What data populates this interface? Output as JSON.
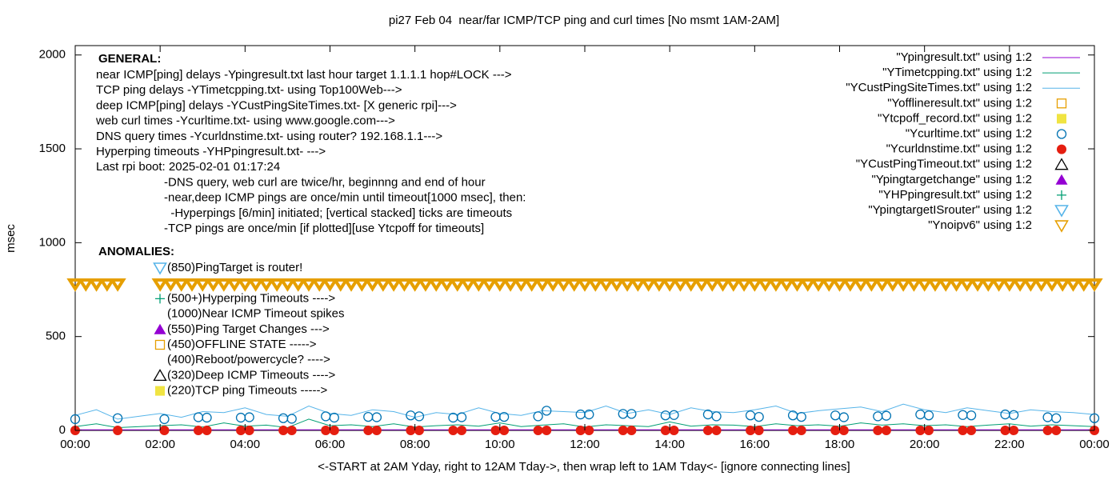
{
  "chart_data": {
    "type": "line",
    "title": "pi27 Feb 04  near/far ICMP/TCP ping and curl times [No msmt 1AM-2AM]",
    "x_label": "<-START at 2AM Yday, right to 12AM Tday->, then wrap left to 1AM Tday<- [ignore connecting lines]",
    "y_label": "msec",
    "xlim": [
      0,
      24
    ],
    "ylim": [
      0,
      2050
    ],
    "yticks": [
      0,
      500,
      1000,
      1500,
      2000
    ],
    "xticks": [
      {
        "value": 0,
        "label": "00:00"
      },
      {
        "value": 2,
        "label": "02:00"
      },
      {
        "value": 4,
        "label": "04:00"
      },
      {
        "value": 6,
        "label": "06:00"
      },
      {
        "value": 8,
        "label": "08:00"
      },
      {
        "value": 10,
        "label": "10:00"
      },
      {
        "value": 12,
        "label": "12:00"
      },
      {
        "value": 14,
        "label": "14:00"
      },
      {
        "value": 16,
        "label": "16:00"
      },
      {
        "value": 18,
        "label": "18:00"
      },
      {
        "value": 20,
        "label": "20:00"
      },
      {
        "value": 22,
        "label": "22:00"
      },
      {
        "value": 24,
        "label": "00:00"
      }
    ],
    "grid": false,
    "legend_position": "upper-right",
    "general_title": "GENERAL:",
    "general_lines": [
      "near ICMP[ping] delays -Ypingresult.txt last hour target 1.1.1.1 hop#LOCK --->",
      "TCP ping delays -YTimetcpping.txt- using Top100Web--->",
      "deep ICMP[ping] delays -YCustPingSiteTimes.txt- [X generic rpi]--->",
      "web curl times -Ycurltime.txt- using www.google.com--->",
      "DNS query times -Ycurldnstime.txt- using router? 192.168.1.1--->",
      "Hyperping timeouts -YHPpingresult.txt- --->",
      "Last rpi boot: 2025-02-01 01:17:24",
      "-DNS query, web curl are twice/hr, beginnng and end of hour",
      "-near,deep ICMP pings are once/min until timeout[1000 msec], then:",
      "  -Hyperpings [6/min] initiated; [vertical stacked] ticks are timeouts",
      "-TCP pings are once/min [if plotted][use Ytcpoff for timeouts]"
    ],
    "anomalies_title": "ANOMALIES:",
    "anomalies_lines": [
      "(850)PingTarget is router!",
      "(500+)Hyperping Timeouts ---->",
      "(1000)Near ICMP Timeout spikes",
      "(550)Ping Target Changes --->",
      "(450)OFFLINE STATE ----->",
      "(400)Reboot/powercycle? ---->",
      "(320)Deep ICMP Timeouts ---->",
      "(220)TCP ping Timeouts ----->"
    ],
    "series": [
      {
        "name": "\"Ypingresult.txt\" using 1:2",
        "color": "#9400d3",
        "marker": "line",
        "x": [
          0,
          12,
          24
        ],
        "values": [
          3,
          3,
          3
        ]
      },
      {
        "name": "\"YTimetcpping.txt\" using 1:2",
        "color": "#009e73",
        "marker": "line",
        "x": [
          0,
          0.5,
          1,
          2,
          2.5,
          3,
          3.5,
          4,
          4.5,
          5,
          5.5,
          6,
          6.5,
          7,
          7.5,
          8,
          8.5,
          9,
          9.5,
          10,
          10.5,
          11,
          11.5,
          12,
          12.5,
          13,
          13.5,
          14,
          14.5,
          15,
          15.5,
          16,
          16.5,
          17,
          17.5,
          18,
          18.5,
          19,
          19.5,
          20,
          20.5,
          21,
          21.5,
          22,
          22.5,
          23,
          23.5,
          24
        ],
        "values": [
          20,
          35,
          15,
          25,
          30,
          18,
          40,
          22,
          28,
          15,
          60,
          25,
          30,
          20,
          35,
          18,
          25,
          30,
          22,
          40,
          20,
          28,
          35,
          18,
          30,
          25,
          20,
          45,
          22,
          30,
          28,
          20,
          35,
          25,
          30,
          22,
          40,
          28,
          35,
          25,
          30,
          20,
          28,
          35,
          22,
          30,
          25,
          20
        ]
      },
      {
        "name": "\"YCustPingSiteTimes.txt\" using 1:2",
        "color": "#56b4e9",
        "marker": "line",
        "x": [
          0,
          0.5,
          1,
          2,
          2.5,
          3,
          3.5,
          4,
          4.5,
          5,
          5.5,
          6,
          6.5,
          7,
          7.5,
          8,
          8.5,
          9,
          9.5,
          10,
          10.5,
          11,
          11.5,
          12,
          12.5,
          13,
          13.5,
          14,
          14.5,
          15,
          15.5,
          16,
          16.5,
          17,
          17.5,
          18,
          18.5,
          19,
          19.5,
          20,
          20.5,
          21,
          21.5,
          22,
          22.5,
          23,
          23.5,
          24
        ],
        "values": [
          80,
          110,
          60,
          90,
          70,
          100,
          95,
          120,
          85,
          75,
          130,
          90,
          80,
          110,
          100,
          70,
          95,
          85,
          120,
          90,
          80,
          105,
          100,
          95,
          130,
          90,
          110,
          85,
          120,
          100,
          95,
          110,
          130,
          90,
          105,
          115,
          125,
          100,
          140,
          110,
          95,
          120,
          105,
          90,
          110,
          100,
          95,
          85
        ]
      },
      {
        "name": "\"Yofflineresult.txt\" using 1:2",
        "color": "#e69f00",
        "marker": "open-square",
        "x": [],
        "values": []
      },
      {
        "name": "\"Ytcpoff_record.txt\" using 1:2",
        "color": "#f0e442",
        "marker": "filled-square",
        "x": [],
        "values": []
      },
      {
        "name": "\"Ycurltime.txt\" using 1:2",
        "color": "#0072b2",
        "marker": "open-circle",
        "x": [
          0,
          1,
          2.1,
          2.9,
          3.1,
          3.9,
          4.1,
          4.9,
          5.1,
          5.9,
          6.1,
          6.9,
          7.1,
          7.9,
          8.1,
          8.9,
          9.1,
          9.9,
          10.1,
          10.9,
          11.1,
          11.9,
          12.1,
          12.9,
          13.1,
          13.9,
          14.1,
          14.9,
          15.1,
          15.9,
          16.1,
          16.9,
          17.1,
          17.9,
          18.1,
          18.9,
          19.1,
          19.9,
          20.1,
          20.9,
          21.1,
          21.9,
          22.1,
          22.9,
          23.1,
          24
        ],
        "values": [
          60,
          65,
          60,
          70,
          68,
          68,
          70,
          65,
          62,
          75,
          68,
          72,
          70,
          80,
          75,
          68,
          70,
          72,
          72,
          75,
          105,
          85,
          85,
          88,
          88,
          80,
          82,
          85,
          75,
          80,
          72,
          80,
          72,
          80,
          70,
          75,
          78,
          85,
          80,
          82,
          80,
          85,
          82,
          70,
          65,
          65
        ]
      },
      {
        "name": "\"Ycurldnstime.txt\" using 1:2",
        "color": "#e51e10",
        "marker": "filled-circle",
        "x": [
          0,
          1,
          2.1,
          2.9,
          3.1,
          3.9,
          4.1,
          4.9,
          5.1,
          5.9,
          6.1,
          6.9,
          7.1,
          7.9,
          8.1,
          8.9,
          9.1,
          9.9,
          10.1,
          10.9,
          11.1,
          11.9,
          12.1,
          12.9,
          13.1,
          13.9,
          14.1,
          14.9,
          15.1,
          15.9,
          16.1,
          16.9,
          17.1,
          17.9,
          18.1,
          18.9,
          19.1,
          19.9,
          20.1,
          20.9,
          21.1,
          21.9,
          22.1,
          22.9,
          23.1,
          24
        ],
        "values": [
          0,
          0,
          0,
          0,
          0,
          0,
          0,
          0,
          0,
          0,
          0,
          0,
          0,
          0,
          0,
          0,
          0,
          0,
          0,
          0,
          0,
          0,
          0,
          0,
          0,
          0,
          0,
          0,
          0,
          0,
          0,
          0,
          0,
          0,
          0,
          0,
          0,
          0,
          0,
          0,
          0,
          0,
          0,
          0,
          0,
          0
        ]
      },
      {
        "name": "\"YCustPingTimeout.txt\" using 1:2",
        "color": "#000000",
        "marker": "open-triangle-up",
        "x": [],
        "values": []
      },
      {
        "name": "\"Ypingtargetchange\" using 1:2",
        "color": "#9400d3",
        "marker": "filled-triangle-up",
        "x": [],
        "values": []
      },
      {
        "name": "\"YHPpingresult.txt\" using 1:2",
        "color": "#009e73",
        "marker": "plus",
        "x": [],
        "values": []
      },
      {
        "name": "\"YpingtargetISrouter\" using 1:2",
        "color": "#56b4e9",
        "marker": "open-triangle-down",
        "x": [],
        "values": []
      },
      {
        "name": "\"Ynoipv6\" using 1:2",
        "color": "#e69f00",
        "marker": "open-triangle-down",
        "x": [
          0,
          0.25,
          0.5,
          0.75,
          1,
          2,
          2.25,
          2.5,
          2.75,
          3,
          3.25,
          3.5,
          3.75,
          4,
          4.25,
          4.5,
          4.75,
          5,
          5.25,
          5.5,
          5.75,
          6,
          6.25,
          6.5,
          6.75,
          7,
          7.25,
          7.5,
          7.75,
          8,
          8.25,
          8.5,
          8.75,
          9,
          9.25,
          9.5,
          9.75,
          10,
          10.25,
          10.5,
          10.75,
          11,
          11.25,
          11.5,
          11.75,
          12,
          12.25,
          12.5,
          12.75,
          13,
          13.25,
          13.5,
          13.75,
          14,
          14.25,
          14.5,
          14.75,
          15,
          15.25,
          15.5,
          15.75,
          16,
          16.25,
          16.5,
          16.75,
          17,
          17.25,
          17.5,
          17.75,
          18,
          18.25,
          18.5,
          18.75,
          19,
          19.25,
          19.5,
          19.75,
          20,
          20.25,
          20.5,
          20.75,
          21,
          21.25,
          21.5,
          21.75,
          22,
          22.25,
          22.5,
          22.75,
          23,
          23.25,
          23.5,
          23.75,
          24
        ],
        "values": [
          780,
          780,
          780,
          780,
          780,
          780,
          780,
          780,
          780,
          780,
          780,
          780,
          780,
          780,
          780,
          780,
          780,
          780,
          780,
          780,
          780,
          780,
          780,
          780,
          780,
          780,
          780,
          780,
          780,
          780,
          780,
          780,
          780,
          780,
          780,
          780,
          780,
          780,
          780,
          780,
          780,
          780,
          780,
          780,
          780,
          780,
          780,
          780,
          780,
          780,
          780,
          780,
          780,
          780,
          780,
          780,
          780,
          780,
          780,
          780,
          780,
          780,
          780,
          780,
          780,
          780,
          780,
          780,
          780,
          780,
          780,
          780,
          780,
          780,
          780,
          780,
          780,
          780,
          780,
          780,
          780,
          780,
          780,
          780,
          780,
          780,
          780,
          780,
          780,
          780,
          780,
          780,
          780,
          780
        ]
      }
    ]
  }
}
